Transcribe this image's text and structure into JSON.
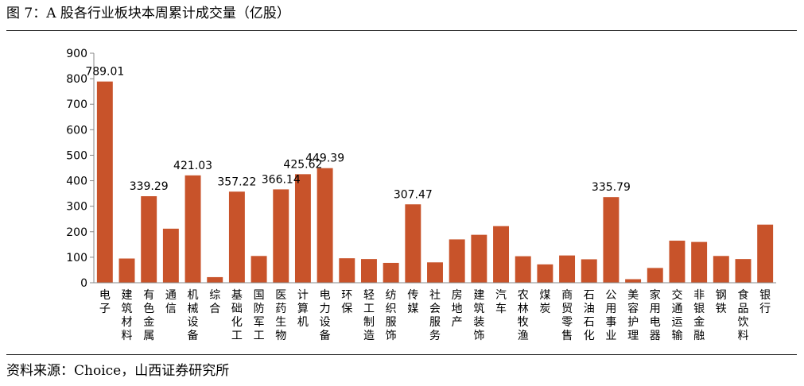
{
  "figure": {
    "title": "图 7：A 股各行业板块本周累计成交量（亿股）",
    "source": "资料来源：Choice，山西证券研究所"
  },
  "chart_data": {
    "type": "bar",
    "categories": [
      "电子",
      "建筑材料",
      "有色金属",
      "通信",
      "机械设备",
      "综合",
      "基础化工",
      "国防军工",
      "医药生物",
      "计算机",
      "电力设备",
      "环保",
      "轻工制造",
      "纺织服饰",
      "传媒",
      "社会服务",
      "房地产",
      "建筑装饰",
      "汽车",
      "农林牧渔",
      "煤炭",
      "商贸零售",
      "石油石化",
      "公用事业",
      "美容护理",
      "家用电器",
      "交通运输",
      "非银金融",
      "钢铁",
      "食品饮料",
      "银行"
    ],
    "values": [
      789.01,
      95,
      339.29,
      212,
      421.03,
      22,
      357.22,
      105,
      366.14,
      425.62,
      449.39,
      96,
      93,
      78,
      307.47,
      80,
      170,
      188,
      222,
      104,
      72,
      107,
      92,
      335.79,
      14,
      58,
      165,
      160,
      105,
      93,
      228
    ],
    "data_labels": [
      {
        "index": 0,
        "text": "789.01"
      },
      {
        "index": 2,
        "text": "339.29"
      },
      {
        "index": 4,
        "text": "421.03"
      },
      {
        "index": 6,
        "text": "357.22"
      },
      {
        "index": 8,
        "text": "366.14"
      },
      {
        "index": 9,
        "text": "425.62"
      },
      {
        "index": 10,
        "text": "449.39"
      },
      {
        "index": 14,
        "text": "307.47"
      },
      {
        "index": 23,
        "text": "335.79"
      }
    ],
    "yticks": [
      0,
      100,
      200,
      300,
      400,
      500,
      600,
      700,
      800,
      900
    ],
    "ylim": [
      0,
      900
    ],
    "grid": false,
    "legend": "none",
    "bar_color": "#c8532a"
  }
}
